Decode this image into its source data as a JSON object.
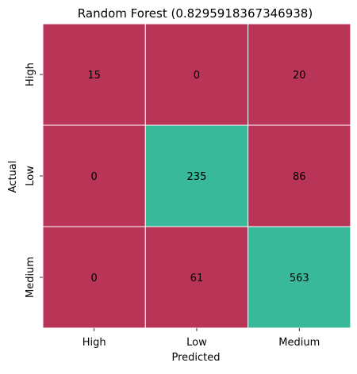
{
  "chart_data": {
    "type": "heatmap",
    "title": "Random Forest (0.8295918367346938)",
    "xlabel": "Predicted",
    "ylabel": "Actual",
    "x_categories": [
      "High",
      "Low",
      "Medium"
    ],
    "y_categories": [
      "High",
      "Low",
      "Medium"
    ],
    "values": [
      [
        15,
        0,
        20
      ],
      [
        0,
        235,
        86
      ],
      [
        0,
        61,
        563
      ]
    ],
    "grid": false,
    "colors": {
      "off_diagonal": "#b93558",
      "diagonal": "#37b99a",
      "cell_border": "#ffffff"
    }
  }
}
